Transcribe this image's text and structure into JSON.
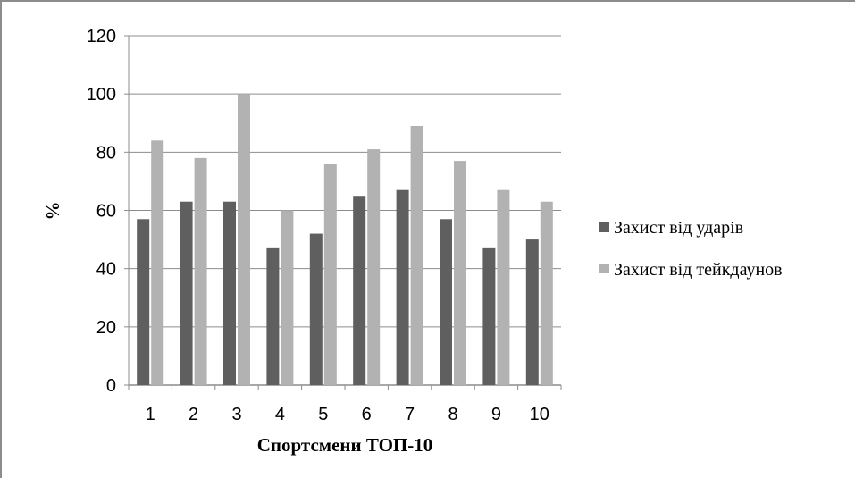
{
  "chart_data": {
    "type": "bar",
    "title": "",
    "xlabel": "Спортсмени ТОП-10",
    "ylabel": "%",
    "categories": [
      "1",
      "2",
      "3",
      "4",
      "5",
      "6",
      "7",
      "8",
      "9",
      "10"
    ],
    "series": [
      {
        "name": "Захист від ударів",
        "color": "#5f5f5f",
        "values": [
          57,
          63,
          63,
          47,
          52,
          65,
          67,
          57,
          47,
          50
        ]
      },
      {
        "name": "Захист від тейкдаунов",
        "color": "#b2b2b2",
        "values": [
          84,
          78,
          100,
          60,
          76,
          81,
          89,
          77,
          67,
          63
        ]
      }
    ],
    "ylim": [
      0,
      120
    ],
    "yticks": [
      "0",
      "20",
      "40",
      "60",
      "80",
      "100",
      "120"
    ],
    "grid": true,
    "legend": "right"
  }
}
